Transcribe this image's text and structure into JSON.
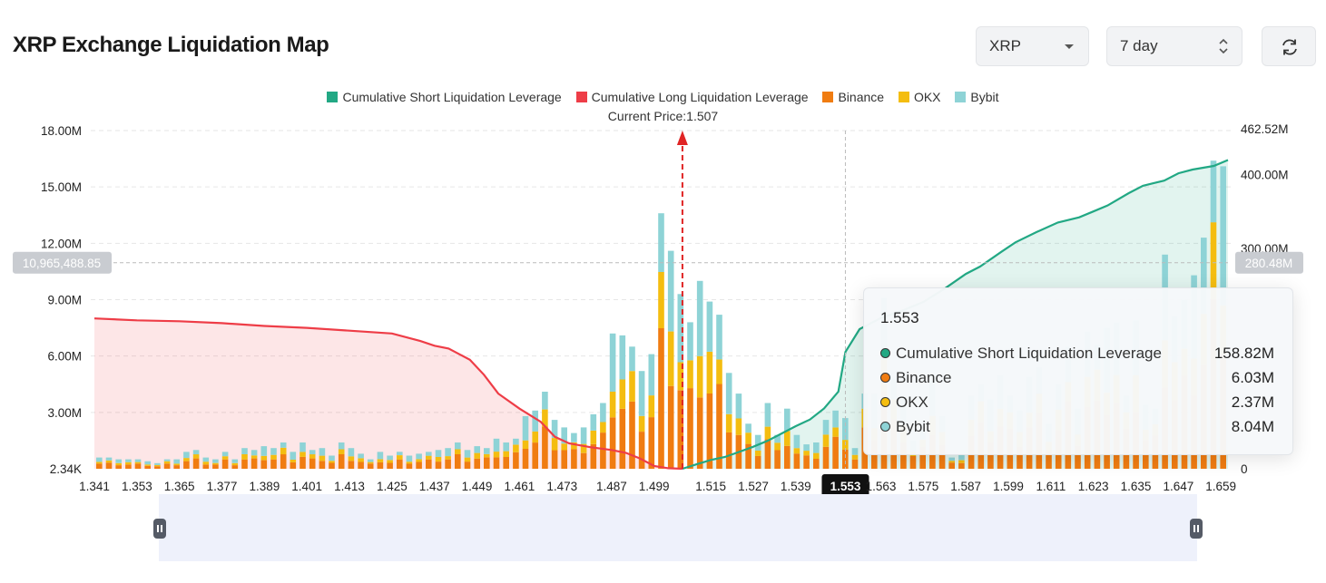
{
  "page": {
    "title": "XRP Exchange Liquidation Map",
    "asset_select": "XRP",
    "range_select": "7 day",
    "refresh_icon": "refresh-icon"
  },
  "legend": [
    {
      "label": "Cumulative Short Liquidation Leverage",
      "color": "#22a884"
    },
    {
      "label": "Cumulative Long Liquidation Leverage",
      "color": "#ee3d47"
    },
    {
      "label": "Binance",
      "color": "#f07c11"
    },
    {
      "label": "OKX",
      "color": "#f4bd10"
    },
    {
      "label": "Bybit",
      "color": "#8ed3d6"
    }
  ],
  "current_price_label": "Current Price:1.507",
  "crosshair": {
    "left_value": "10,965,488.85",
    "right_value": "280.48M",
    "x_label": "1.553"
  },
  "tooltip": {
    "title": "1.553",
    "rows": [
      {
        "label": "Cumulative Short Liquidation Leverage",
        "value": "158.82M",
        "color": "#22a884"
      },
      {
        "label": "Binance",
        "value": "6.03M",
        "color": "#f07c11"
      },
      {
        "label": "OKX",
        "value": "2.37M",
        "color": "#f4bd10"
      },
      {
        "label": "Bybit",
        "value": "8.04M",
        "color": "#8ed3d6"
      }
    ]
  },
  "chart_data": {
    "type": "bar",
    "current_price": 1.507,
    "x_start": 1.341,
    "x_step": 0.002,
    "x_ticks": [
      "1.341",
      "1.353",
      "1.365",
      "1.377",
      "1.389",
      "1.401",
      "1.413",
      "1.425",
      "1.437",
      "1.449",
      "1.461",
      "1.473",
      "1.487",
      "1.499",
      "1.515",
      "1.527",
      "1.539",
      "1.553",
      "1.563",
      "1.575",
      "1.587",
      "1.599",
      "1.611",
      "1.623",
      "1.635",
      "1.647",
      "1.659"
    ],
    "y_left_ticks": [
      "18.00M",
      "15.00M",
      "12.00M",
      "9.00M",
      "6.00M",
      "3.00M",
      "2.34K"
    ],
    "y_right_ticks": [
      "462.52M",
      "400.00M",
      "300.00M",
      "0"
    ],
    "y_left_range_millions": [
      0,
      18
    ],
    "y_right_range_millions": [
      0,
      462.52
    ],
    "grid": true,
    "stack_order": [
      "Binance",
      "OKX",
      "Bybit"
    ],
    "bar_totals_millions": [
      0.6,
      0.6,
      0.5,
      0.5,
      0.5,
      0.4,
      0.3,
      0.5,
      0.5,
      0.9,
      1.0,
      0.6,
      0.5,
      0.9,
      0.5,
      1.1,
      1.0,
      1.2,
      1.1,
      1.4,
      0.9,
      1.4,
      1.0,
      1.1,
      0.7,
      1.4,
      1.1,
      0.8,
      0.5,
      0.9,
      0.7,
      0.9,
      0.7,
      0.8,
      0.9,
      1.0,
      1.1,
      1.4,
      1.0,
      1.2,
      1.1,
      1.6,
      1.4,
      1.6,
      2.8,
      3.1,
      4.1,
      2.6,
      2.2,
      1.9,
      2.2,
      2.9,
      3.5,
      7.2,
      7.1,
      6.5,
      5.2,
      6.1,
      13.6,
      11.6,
      9.3,
      7.8,
      10.0,
      8.9,
      8.2,
      5.1,
      4.0,
      2.4,
      1.8,
      3.5,
      1.8,
      3.2,
      1.8,
      1.3,
      1.4,
      2.6,
      3.1,
      2.7,
      1.1,
      4.0,
      4.0,
      9.1,
      4.8,
      3.7,
      1.5,
      2.1,
      4.7,
      2.8,
      0.6,
      0.8,
      3.9,
      4.5,
      3.7,
      5.0,
      3.9,
      3.1,
      4.9,
      5.4,
      2.4,
      4.5,
      6.5,
      3.2,
      7.3,
      6.6,
      7.5,
      7.8,
      3.9,
      7.9,
      3.4,
      3.2,
      11.4,
      8.1,
      9.0,
      10.3,
      12.3,
      16.4,
      16.1
    ],
    "series": [
      {
        "name": "Cumulative Short Liquidation Leverage",
        "axis": "right",
        "points": [
          [
            1.507,
            0
          ],
          [
            1.511,
            6
          ],
          [
            1.515,
            12
          ],
          [
            1.519,
            16
          ],
          [
            1.523,
            23
          ],
          [
            1.527,
            30
          ],
          [
            1.531,
            38
          ],
          [
            1.535,
            48
          ],
          [
            1.539,
            58
          ],
          [
            1.543,
            67
          ],
          [
            1.547,
            82
          ],
          [
            1.551,
            105
          ],
          [
            1.553,
            158.82
          ],
          [
            1.557,
            190
          ],
          [
            1.563,
            205
          ],
          [
            1.569,
            215
          ],
          [
            1.575,
            227
          ],
          [
            1.581,
            245
          ],
          [
            1.587,
            265
          ],
          [
            1.591,
            275
          ],
          [
            1.597,
            295
          ],
          [
            1.601,
            308
          ],
          [
            1.607,
            322
          ],
          [
            1.613,
            335
          ],
          [
            1.619,
            342
          ],
          [
            1.623,
            350
          ],
          [
            1.627,
            358
          ],
          [
            1.633,
            375
          ],
          [
            1.637,
            385
          ],
          [
            1.643,
            392
          ],
          [
            1.647,
            402
          ],
          [
            1.651,
            407
          ],
          [
            1.657,
            412
          ],
          [
            1.661,
            420
          ]
        ]
      },
      {
        "name": "Cumulative Long Liquidation Leverage",
        "axis": "left",
        "points": [
          [
            1.341,
            8.0
          ],
          [
            1.353,
            7.9
          ],
          [
            1.365,
            7.85
          ],
          [
            1.377,
            7.75
          ],
          [
            1.389,
            7.6
          ],
          [
            1.401,
            7.5
          ],
          [
            1.413,
            7.35
          ],
          [
            1.425,
            7.2
          ],
          [
            1.433,
            6.8
          ],
          [
            1.437,
            6.55
          ],
          [
            1.441,
            6.4
          ],
          [
            1.447,
            5.8
          ],
          [
            1.451,
            5.0
          ],
          [
            1.455,
            4.0
          ],
          [
            1.461,
            3.2
          ],
          [
            1.467,
            2.5
          ],
          [
            1.471,
            1.7
          ],
          [
            1.475,
            1.35
          ],
          [
            1.481,
            1.15
          ],
          [
            1.487,
            1.0
          ],
          [
            1.491,
            0.85
          ],
          [
            1.495,
            0.55
          ],
          [
            1.499,
            0.15
          ],
          [
            1.503,
            0.03
          ],
          [
            1.507,
            0.0
          ]
        ]
      }
    ]
  }
}
